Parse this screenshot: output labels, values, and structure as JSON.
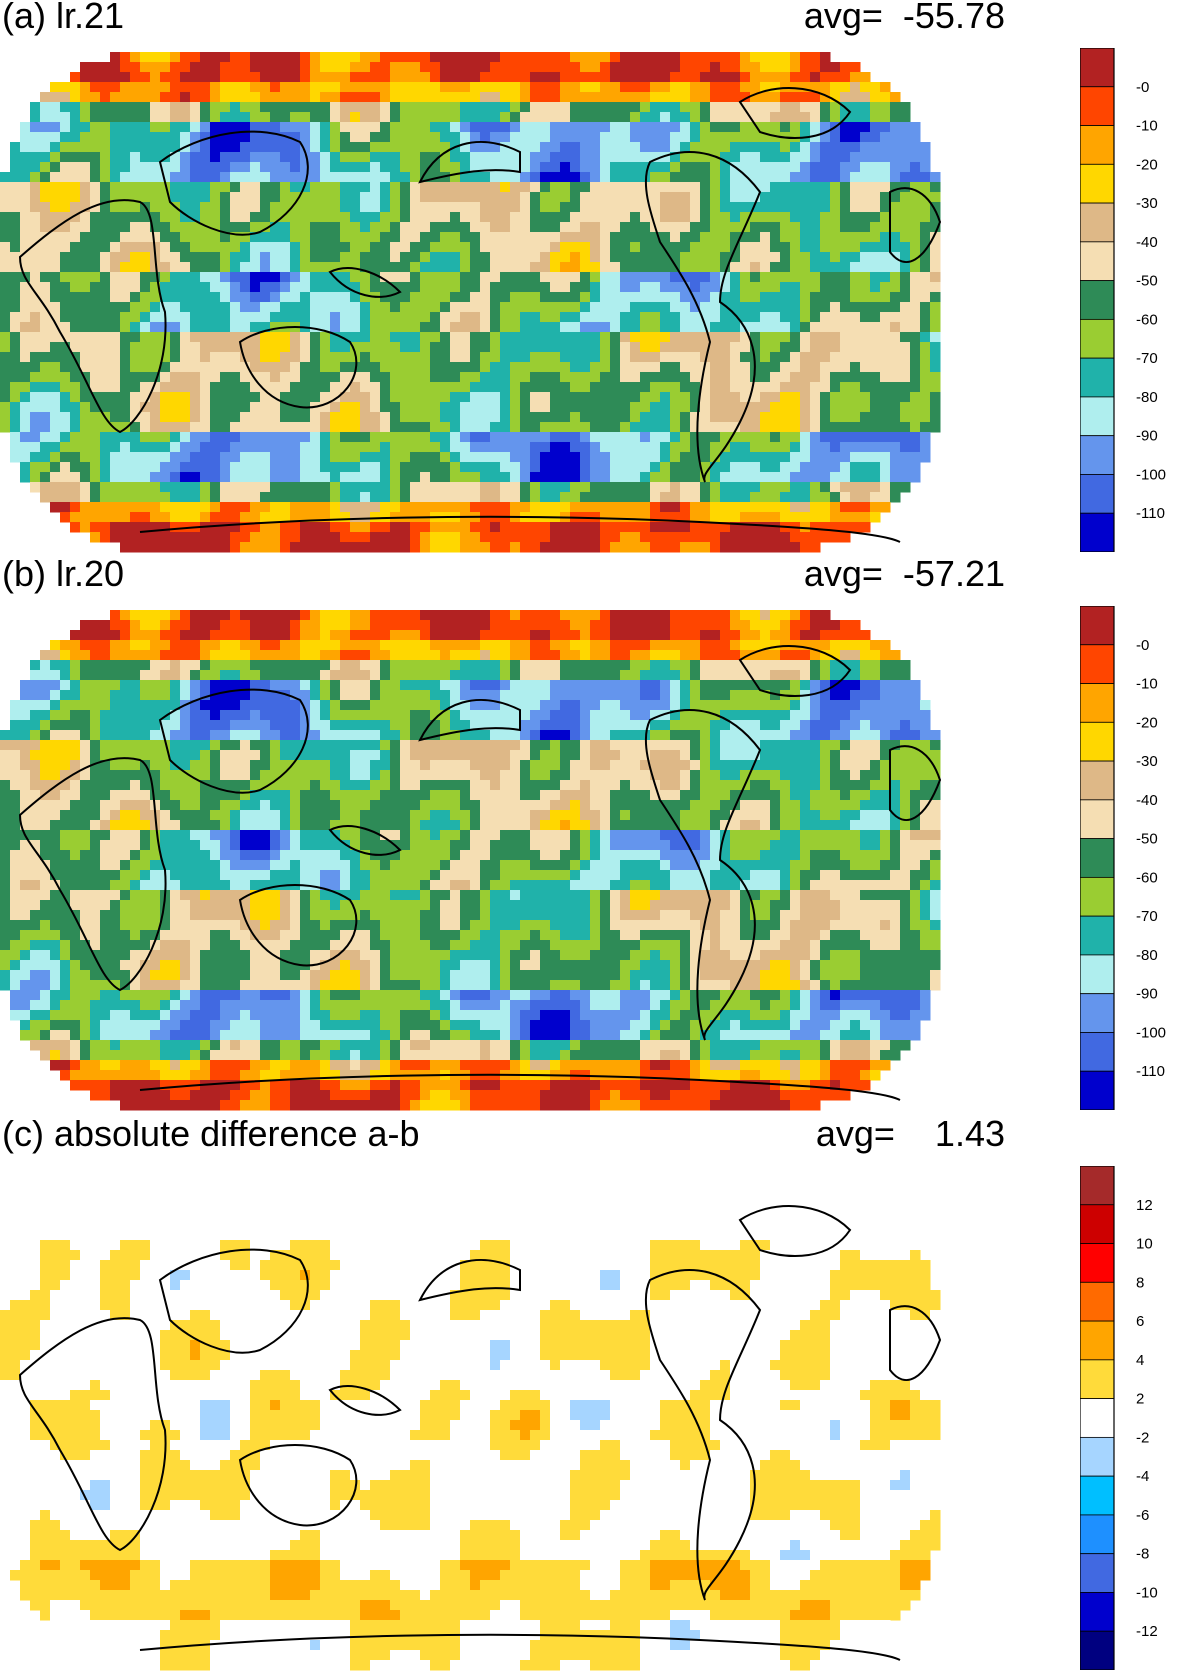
{
  "panels": [
    {
      "id": "a",
      "title": "(a) lr.21",
      "avg_label": "avg=",
      "avg_value": "-55.78",
      "scale": "main"
    },
    {
      "id": "b",
      "title": "(b) lr.20",
      "avg_label": "avg=",
      "avg_value": "-57.21",
      "scale": "main"
    },
    {
      "id": "c",
      "title": "(c) absolute difference a-b",
      "avg_label": "avg=",
      "avg_value": "1.43",
      "scale": "diff"
    }
  ],
  "colorbars": {
    "main": {
      "colors": [
        "#b22222",
        "#ff4500",
        "#ffa500",
        "#ffd700",
        "#deb887",
        "#f5deb3",
        "#2e8b57",
        "#9acd32",
        "#20b2aa",
        "#afeeee",
        "#6495ed",
        "#4169e1",
        "#0000cd"
      ],
      "labels": [
        "-0",
        "-10",
        "-20",
        "-30",
        "-40",
        "-50",
        "-60",
        "-70",
        "-80",
        "-90",
        "-100",
        "-110"
      ]
    },
    "diff": {
      "colors": [
        "#a52a2a",
        "#cd0000",
        "#ff0000",
        "#ff6a00",
        "#ffa500",
        "#ffdb3a",
        "#ffffff",
        "#a6d5ff",
        "#00bfff",
        "#1e90ff",
        "#4169e1",
        "#0000cd",
        "#000080"
      ],
      "labels": [
        "12",
        "10",
        "8",
        "6",
        "4",
        "2",
        "-2",
        "-4",
        "-6",
        "-8",
        "-10",
        "-12"
      ]
    }
  },
  "projection": "Robinson"
}
